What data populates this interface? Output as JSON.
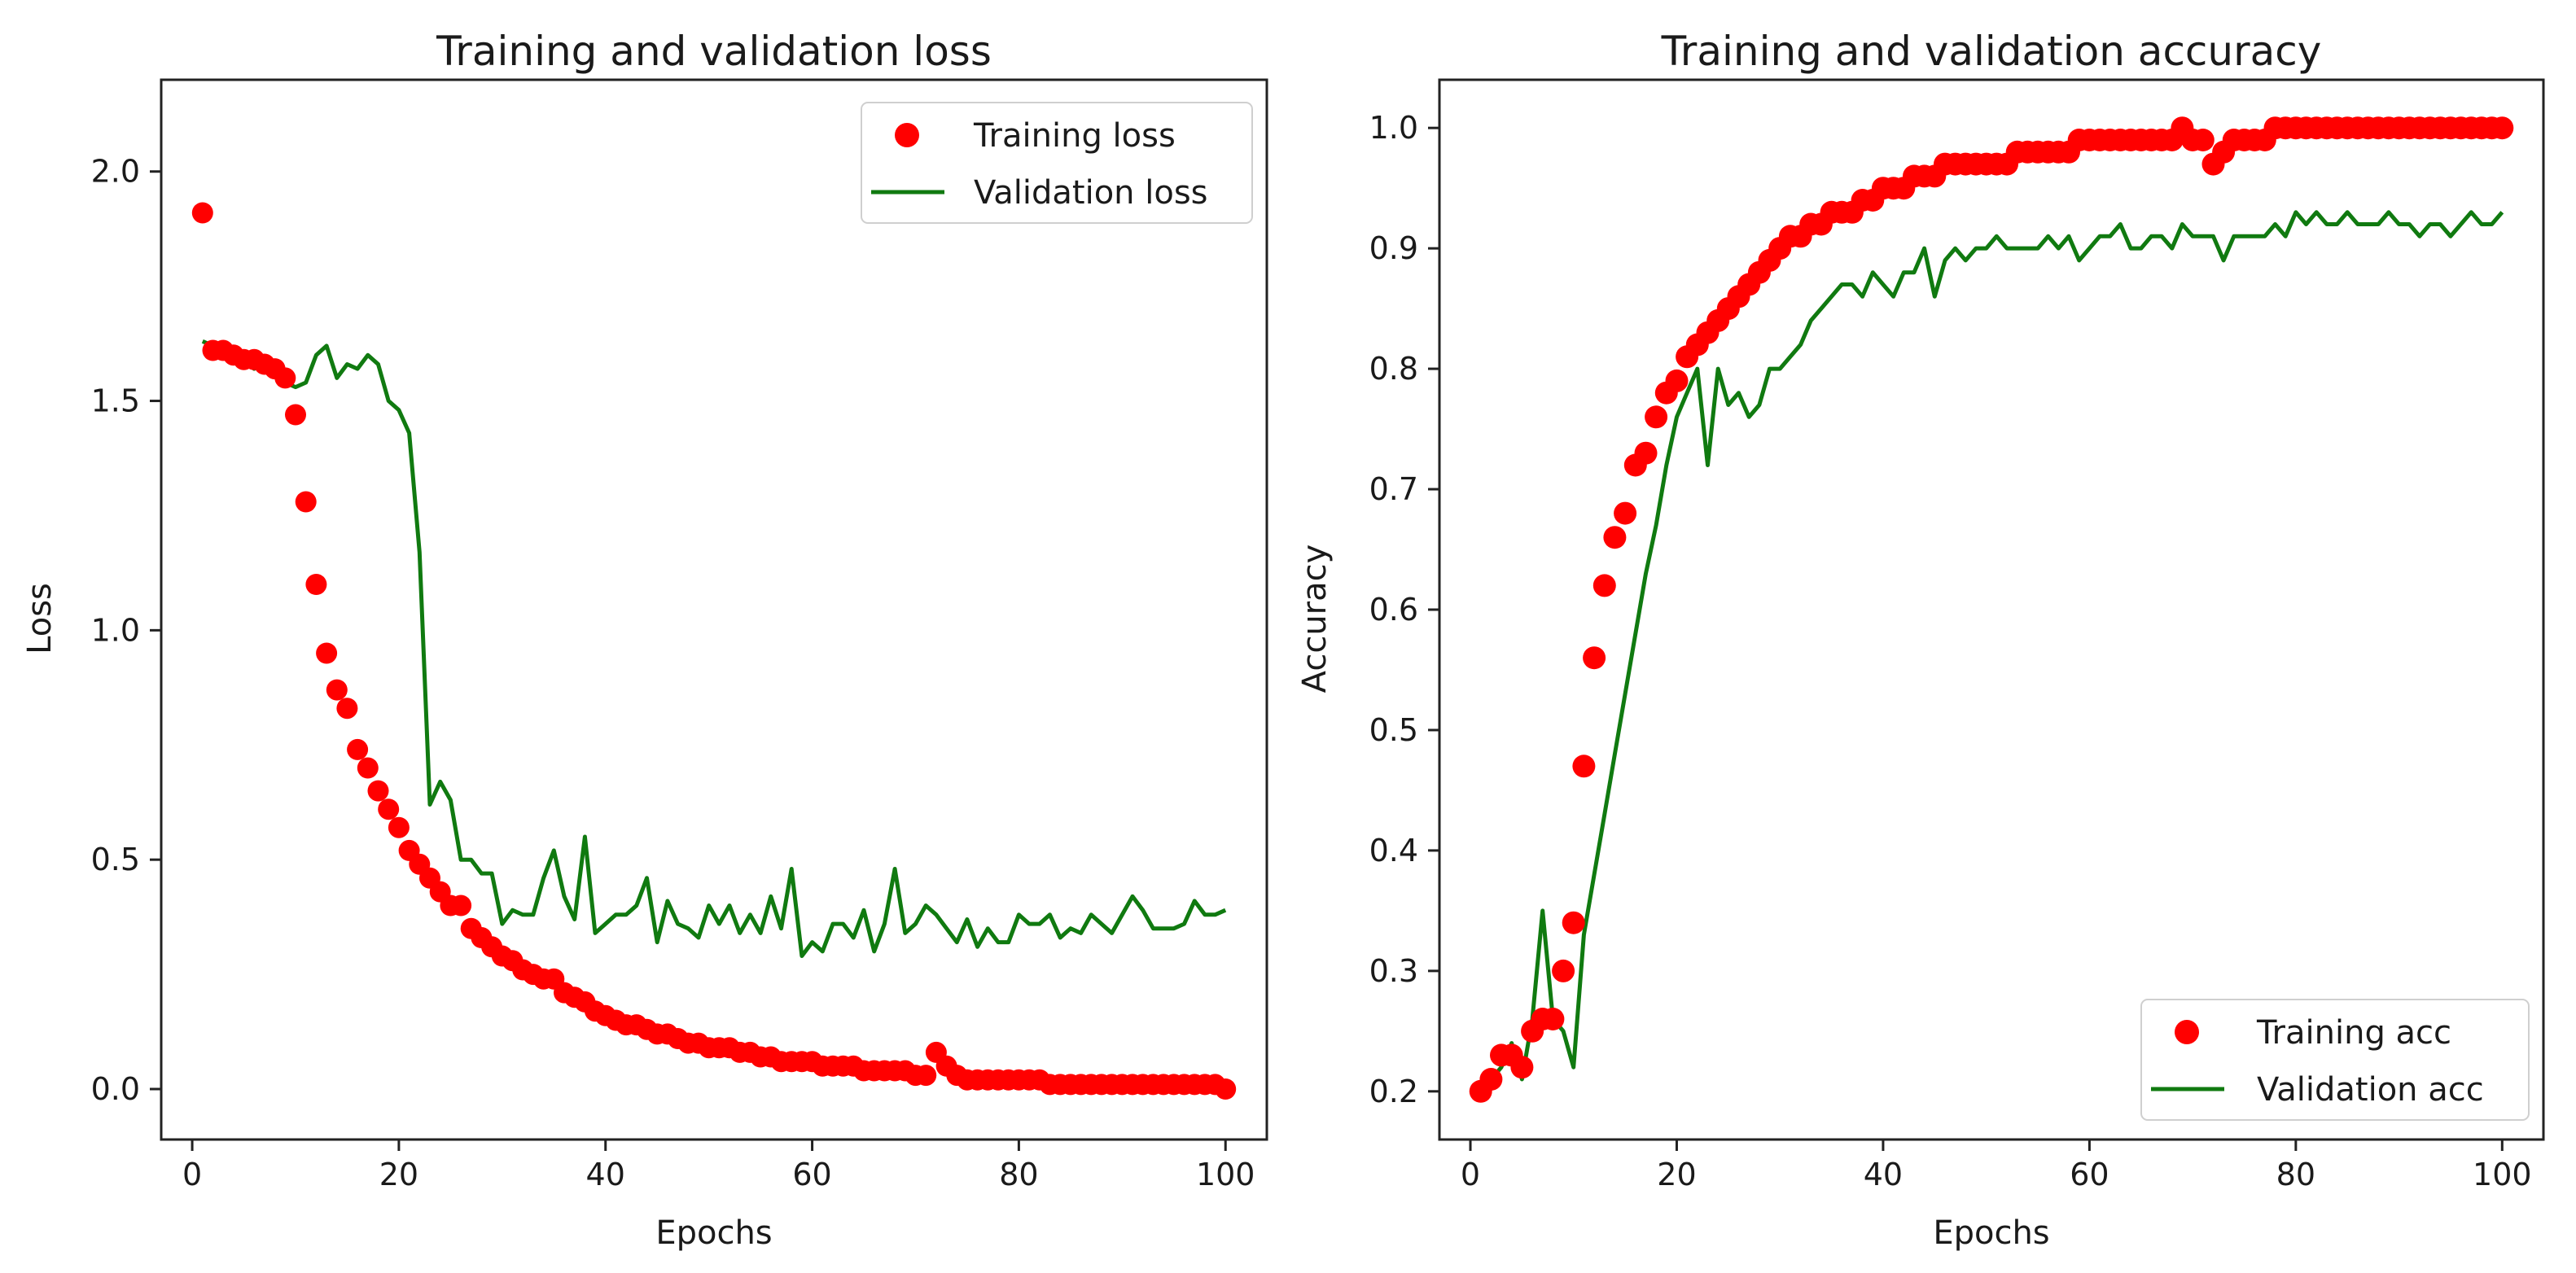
{
  "chart_data": [
    {
      "type": "scatter+line",
      "title": "Training and validation loss",
      "xlabel": "Epochs",
      "ylabel": "Loss",
      "xlim": [
        -3,
        104
      ],
      "ylim": [
        -0.11,
        2.2
      ],
      "xticks": [
        0,
        20,
        40,
        60,
        80,
        100
      ],
      "yticks": [
        0.0,
        0.5,
        1.0,
        1.5,
        2.0
      ],
      "xtick_labels": [
        "0",
        "20",
        "40",
        "60",
        "80",
        "100"
      ],
      "ytick_labels": [
        "0.0",
        "0.5",
        "1.0",
        "1.5",
        "2.0"
      ],
      "legend_position": "top-right",
      "series": [
        {
          "name": "Training loss",
          "style": "markers",
          "color": "#ff0000",
          "x": [
            1,
            2,
            3,
            4,
            5,
            6,
            7,
            8,
            9,
            10,
            11,
            12,
            13,
            14,
            15,
            16,
            17,
            18,
            19,
            20,
            21,
            22,
            23,
            24,
            25,
            26,
            27,
            28,
            29,
            30,
            31,
            32,
            33,
            34,
            35,
            36,
            37,
            38,
            39,
            40,
            41,
            42,
            43,
            44,
            45,
            46,
            47,
            48,
            49,
            50,
            51,
            52,
            53,
            54,
            55,
            56,
            57,
            58,
            59,
            60,
            61,
            62,
            63,
            64,
            65,
            66,
            67,
            68,
            69,
            70,
            71,
            72,
            73,
            74,
            75,
            76,
            77,
            78,
            79,
            80,
            81,
            82,
            83,
            84,
            85,
            86,
            87,
            88,
            89,
            90,
            91,
            92,
            93,
            94,
            95,
            96,
            97,
            98,
            99,
            100
          ],
          "y": [
            1.91,
            1.61,
            1.61,
            1.6,
            1.59,
            1.59,
            1.58,
            1.57,
            1.55,
            1.47,
            1.28,
            1.1,
            0.95,
            0.87,
            0.83,
            0.74,
            0.7,
            0.65,
            0.61,
            0.57,
            0.52,
            0.49,
            0.46,
            0.43,
            0.4,
            0.4,
            0.35,
            0.33,
            0.31,
            0.29,
            0.28,
            0.26,
            0.25,
            0.24,
            0.24,
            0.21,
            0.2,
            0.19,
            0.17,
            0.16,
            0.15,
            0.14,
            0.14,
            0.13,
            0.12,
            0.12,
            0.11,
            0.1,
            0.1,
            0.09,
            0.09,
            0.09,
            0.08,
            0.08,
            0.07,
            0.07,
            0.06,
            0.06,
            0.06,
            0.06,
            0.05,
            0.05,
            0.05,
            0.05,
            0.04,
            0.04,
            0.04,
            0.04,
            0.04,
            0.03,
            0.03,
            0.08,
            0.05,
            0.03,
            0.02,
            0.02,
            0.02,
            0.02,
            0.02,
            0.02,
            0.02,
            0.02,
            0.01,
            0.01,
            0.01,
            0.01,
            0.01,
            0.01,
            0.01,
            0.01,
            0.01,
            0.01,
            0.01,
            0.01,
            0.01,
            0.01,
            0.01,
            0.01,
            0.01,
            0.0
          ]
        },
        {
          "name": "Validation loss",
          "style": "line",
          "color": "#107a10",
          "x": [
            1,
            2,
            3,
            4,
            5,
            6,
            7,
            8,
            9,
            10,
            11,
            12,
            13,
            14,
            15,
            16,
            17,
            18,
            19,
            20,
            21,
            22,
            23,
            24,
            25,
            26,
            27,
            28,
            29,
            30,
            31,
            32,
            33,
            34,
            35,
            36,
            37,
            38,
            39,
            40,
            41,
            42,
            43,
            44,
            45,
            46,
            47,
            48,
            49,
            50,
            51,
            52,
            53,
            54,
            55,
            56,
            57,
            58,
            59,
            60,
            61,
            62,
            63,
            64,
            65,
            66,
            67,
            68,
            69,
            70,
            71,
            72,
            73,
            74,
            75,
            76,
            77,
            78,
            79,
            80,
            81,
            82,
            83,
            84,
            85,
            86,
            87,
            88,
            89,
            90,
            91,
            92,
            93,
            94,
            95,
            96,
            97,
            98,
            99,
            100
          ],
          "y": [
            1.63,
            1.62,
            1.61,
            1.6,
            1.59,
            1.57,
            1.58,
            1.56,
            1.54,
            1.53,
            1.54,
            1.6,
            1.62,
            1.55,
            1.58,
            1.57,
            1.6,
            1.58,
            1.5,
            1.48,
            1.43,
            1.17,
            0.62,
            0.67,
            0.63,
            0.5,
            0.5,
            0.47,
            0.47,
            0.36,
            0.39,
            0.38,
            0.38,
            0.46,
            0.52,
            0.42,
            0.37,
            0.55,
            0.34,
            0.36,
            0.38,
            0.38,
            0.4,
            0.46,
            0.32,
            0.41,
            0.36,
            0.35,
            0.33,
            0.4,
            0.36,
            0.4,
            0.34,
            0.38,
            0.34,
            0.42,
            0.35,
            0.48,
            0.29,
            0.32,
            0.3,
            0.36,
            0.36,
            0.33,
            0.39,
            0.3,
            0.36,
            0.48,
            0.34,
            0.36,
            0.4,
            0.38,
            0.35,
            0.32,
            0.37,
            0.31,
            0.35,
            0.32,
            0.32,
            0.38,
            0.36,
            0.36,
            0.38,
            0.33,
            0.35,
            0.34,
            0.38,
            0.36,
            0.34,
            0.38,
            0.42,
            0.39,
            0.35,
            0.35,
            0.35,
            0.36,
            0.41,
            0.38,
            0.38,
            0.39
          ]
        }
      ]
    },
    {
      "type": "scatter+line",
      "title": "Training and validation accuracy",
      "xlabel": "Epochs",
      "ylabel": "Accuracy",
      "xlim": [
        -3,
        104
      ],
      "ylim": [
        0.16,
        1.04
      ],
      "xticks": [
        0,
        20,
        40,
        60,
        80,
        100
      ],
      "yticks": [
        0.2,
        0.3,
        0.4,
        0.5,
        0.6,
        0.7,
        0.8,
        0.9,
        1.0
      ],
      "xtick_labels": [
        "0",
        "20",
        "40",
        "60",
        "80",
        "100"
      ],
      "ytick_labels": [
        "0.2",
        "0.3",
        "0.4",
        "0.5",
        "0.6",
        "0.7",
        "0.8",
        "0.9",
        "1.0"
      ],
      "legend_position": "bottom-right",
      "series": [
        {
          "name": "Training acc",
          "style": "markers",
          "color": "#ff0000",
          "x": [
            1,
            2,
            3,
            4,
            5,
            6,
            7,
            8,
            9,
            10,
            11,
            12,
            13,
            14,
            15,
            16,
            17,
            18,
            19,
            20,
            21,
            22,
            23,
            24,
            25,
            26,
            27,
            28,
            29,
            30,
            31,
            32,
            33,
            34,
            35,
            36,
            37,
            38,
            39,
            40,
            41,
            42,
            43,
            44,
            45,
            46,
            47,
            48,
            49,
            50,
            51,
            52,
            53,
            54,
            55,
            56,
            57,
            58,
            59,
            60,
            61,
            62,
            63,
            64,
            65,
            66,
            67,
            68,
            69,
            70,
            71,
            72,
            73,
            74,
            75,
            76,
            77,
            78,
            79,
            80,
            81,
            82,
            83,
            84,
            85,
            86,
            87,
            88,
            89,
            90,
            91,
            92,
            93,
            94,
            95,
            96,
            97,
            98,
            99,
            100
          ],
          "y": [
            0.2,
            0.21,
            0.23,
            0.23,
            0.22,
            0.25,
            0.26,
            0.26,
            0.3,
            0.34,
            0.47,
            0.56,
            0.62,
            0.66,
            0.68,
            0.72,
            0.73,
            0.76,
            0.78,
            0.79,
            0.81,
            0.82,
            0.83,
            0.84,
            0.85,
            0.86,
            0.87,
            0.88,
            0.89,
            0.9,
            0.91,
            0.91,
            0.92,
            0.92,
            0.93,
            0.93,
            0.93,
            0.94,
            0.94,
            0.95,
            0.95,
            0.95,
            0.96,
            0.96,
            0.96,
            0.97,
            0.97,
            0.97,
            0.97,
            0.97,
            0.97,
            0.97,
            0.98,
            0.98,
            0.98,
            0.98,
            0.98,
            0.98,
            0.99,
            0.99,
            0.99,
            0.99,
            0.99,
            0.99,
            0.99,
            0.99,
            0.99,
            0.99,
            1.0,
            0.99,
            0.99,
            0.97,
            0.98,
            0.99,
            0.99,
            0.99,
            0.99,
            1.0,
            1.0,
            1.0,
            1.0,
            1.0,
            1.0,
            1.0,
            1.0,
            1.0,
            1.0,
            1.0,
            1.0,
            1.0,
            1.0,
            1.0,
            1.0,
            1.0,
            1.0,
            1.0,
            1.0,
            1.0,
            1.0,
            1.0
          ]
        },
        {
          "name": "Validation acc",
          "style": "line",
          "color": "#107a10",
          "x": [
            1,
            2,
            3,
            4,
            5,
            6,
            7,
            8,
            9,
            10,
            11,
            12,
            13,
            14,
            15,
            16,
            17,
            18,
            19,
            20,
            21,
            22,
            23,
            24,
            25,
            26,
            27,
            28,
            29,
            30,
            31,
            32,
            33,
            34,
            35,
            36,
            37,
            38,
            39,
            40,
            41,
            42,
            43,
            44,
            45,
            46,
            47,
            48,
            49,
            50,
            51,
            52,
            53,
            54,
            55,
            56,
            57,
            58,
            59,
            60,
            61,
            62,
            63,
            64,
            65,
            66,
            67,
            68,
            69,
            70,
            71,
            72,
            73,
            74,
            75,
            76,
            77,
            78,
            79,
            80,
            81,
            82,
            83,
            84,
            85,
            86,
            87,
            88,
            89,
            90,
            91,
            92,
            93,
            94,
            95,
            96,
            97,
            98,
            99,
            100
          ],
          "y": [
            0.2,
            0.21,
            0.22,
            0.24,
            0.21,
            0.26,
            0.35,
            0.26,
            0.25,
            0.22,
            0.33,
            0.38,
            0.43,
            0.48,
            0.53,
            0.58,
            0.63,
            0.67,
            0.72,
            0.76,
            0.78,
            0.8,
            0.72,
            0.8,
            0.77,
            0.78,
            0.76,
            0.77,
            0.8,
            0.8,
            0.81,
            0.82,
            0.84,
            0.85,
            0.86,
            0.87,
            0.87,
            0.86,
            0.88,
            0.87,
            0.86,
            0.88,
            0.88,
            0.9,
            0.86,
            0.89,
            0.9,
            0.89,
            0.9,
            0.9,
            0.91,
            0.9,
            0.9,
            0.9,
            0.9,
            0.91,
            0.9,
            0.91,
            0.89,
            0.9,
            0.91,
            0.91,
            0.92,
            0.9,
            0.9,
            0.91,
            0.91,
            0.9,
            0.92,
            0.91,
            0.91,
            0.91,
            0.89,
            0.91,
            0.91,
            0.91,
            0.91,
            0.92,
            0.91,
            0.93,
            0.92,
            0.93,
            0.92,
            0.92,
            0.93,
            0.92,
            0.92,
            0.92,
            0.93,
            0.92,
            0.92,
            0.91,
            0.92,
            0.92,
            0.91,
            0.92,
            0.93,
            0.92,
            0.92,
            0.93
          ]
        }
      ]
    }
  ]
}
